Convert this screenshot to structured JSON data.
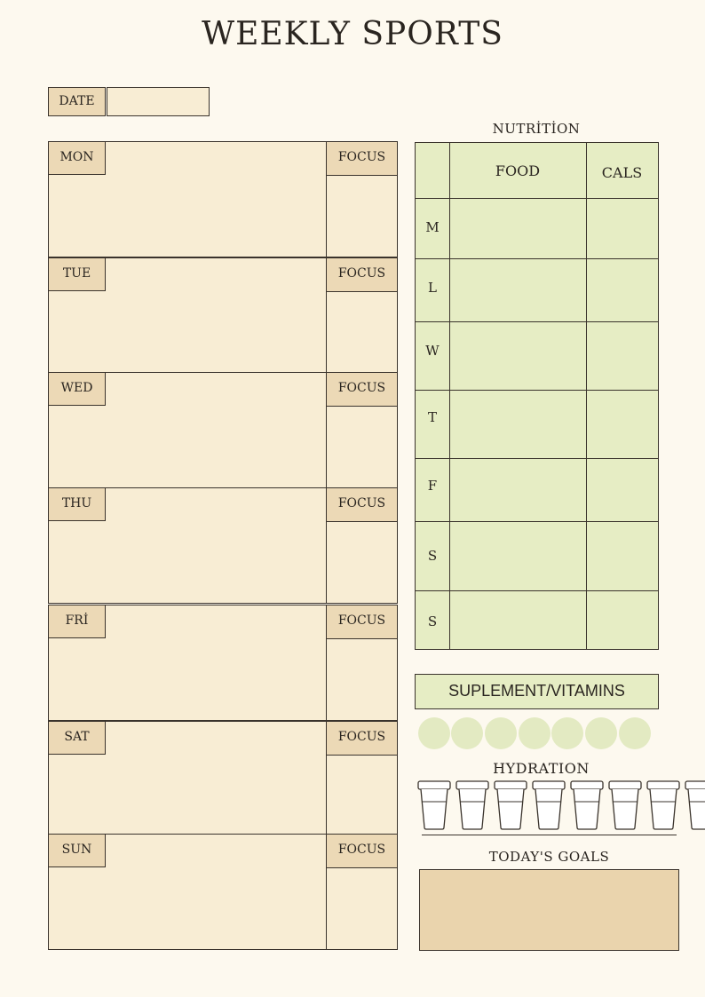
{
  "title": "WEEKLY SPORTS",
  "date_label": "DATE",
  "days": [
    {
      "label": "MON",
      "focus": "FOCUS"
    },
    {
      "label": "TUE",
      "focus": "FOCUS"
    },
    {
      "label": "WED",
      "focus": "FOCUS"
    },
    {
      "label": "THU",
      "focus": "FOCUS"
    },
    {
      "label": "FRİ",
      "focus": "FOCUS"
    },
    {
      "label": "SAT",
      "focus": "FOCUS"
    },
    {
      "label": "SUN",
      "focus": "FOCUS"
    }
  ],
  "nutrition": {
    "title": "NUTRİTİON",
    "food_header": "FOOD",
    "cals_header": "CALS",
    "rows": [
      "M",
      "L",
      "W",
      "T",
      "F",
      "S",
      "S"
    ]
  },
  "supplements": {
    "label": "SUPLEMENT/VITAMINS",
    "dot_count": 7,
    "dot_color": "#e3eac2"
  },
  "hydration": {
    "title": "HYDRATION",
    "cup_count": 8,
    "cup_icon": "water-glass-icon"
  },
  "goals": {
    "title": "TODAY'S GOALS",
    "box_color": "#ead4ad"
  },
  "colors": {
    "background": "#fdf9ef",
    "tan": "#ecd9b6",
    "cream": "#f8edd4",
    "green": "#e6edc4"
  }
}
